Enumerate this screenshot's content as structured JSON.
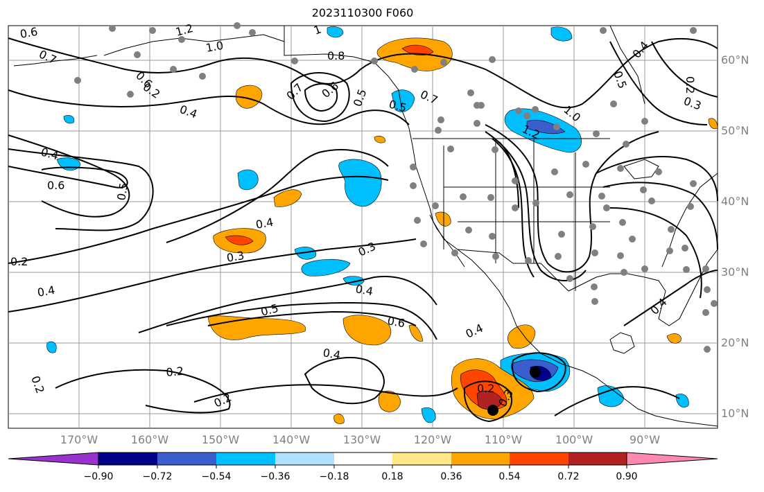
{
  "title": "2023110300 F060",
  "colors": {
    "map_background": "#ffffff",
    "grid": "#9a9a9a",
    "contour": "#000000",
    "station_dot": "#808080",
    "highlight_dot": "#000000"
  },
  "map": {
    "lat_labels": [
      "60°N",
      "50°N",
      "40°N",
      "30°N",
      "20°N",
      "10°N"
    ],
    "lon_labels": [
      "170°W",
      "160°W",
      "150°W",
      "140°W",
      "130°W",
      "120°W",
      "110°W",
      "100°W",
      "90°W"
    ],
    "contour_labels": [
      "0.6",
      "1.2",
      "1",
      "1.0",
      "0.8",
      "0.7",
      "0.6",
      "0.4",
      "0.7",
      "0.6",
      "0.5",
      "0.7",
      "1.2",
      "1.0",
      "0.4",
      "0.5",
      "0.2",
      "0.3",
      "0.4",
      "0.6",
      "0.5",
      "0.4",
      "0.2",
      "0.3",
      "0.3",
      "0.4",
      "0.4",
      "0.5",
      "0.6",
      "0.4",
      "0.4",
      "0.2",
      "0.2",
      "0.2",
      "0.2",
      "0.4",
      "0.5",
      "0.2",
      "0.3"
    ]
  },
  "colorbar": {
    "tick_labels": [
      "−0.90",
      "−0.72",
      "−0.54",
      "−0.36",
      "−0.18",
      "0.18",
      "0.36",
      "0.54",
      "0.72",
      "0.90"
    ],
    "levels": [
      -0.9,
      -0.72,
      -0.54,
      -0.36,
      -0.18,
      0.18,
      0.36,
      0.54,
      0.72,
      0.9
    ],
    "segment_colors": [
      "#9a32cd",
      "#00008b",
      "#3a5fcd",
      "#00bfff",
      "#b0e2ff",
      "#ffffff",
      "#ffe785",
      "#ffa500",
      "#ff4500",
      "#b22222",
      "#ff89ae"
    ]
  }
}
